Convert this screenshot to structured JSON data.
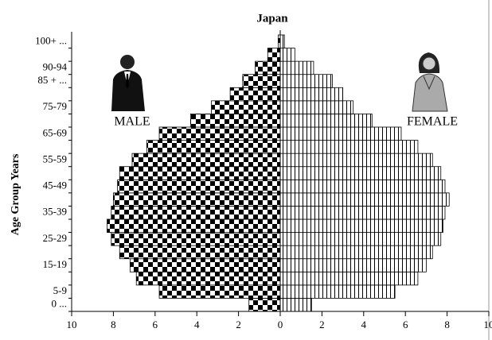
{
  "chart_data": {
    "type": "pyramid",
    "title": "Japan",
    "y_axis_label": "Age Group Years",
    "left_label": "MALE",
    "right_label": "FEMALE",
    "categories": [
      "0 ...",
      "5-9",
      null,
      "15-19",
      null,
      "25-29",
      null,
      "35-39",
      null,
      "45-49",
      null,
      "55-59",
      null,
      "65-69",
      null,
      "75-79",
      null,
      "85 + ...",
      "90-94",
      null,
      "100+ ..."
    ],
    "series": [
      {
        "name": "MALE",
        "color": "#000000",
        "side": "left",
        "values": [
          1.5,
          5.8,
          6.9,
          7.2,
          7.7,
          8.1,
          8.3,
          8.1,
          8.0,
          7.8,
          7.7,
          7.1,
          6.4,
          5.8,
          4.3,
          3.3,
          2.4,
          1.8,
          1.2,
          0.6,
          0.1
        ]
      },
      {
        "name": "FEMALE",
        "color": "#000000",
        "side": "right",
        "values": [
          1.5,
          5.5,
          6.6,
          7.0,
          7.3,
          7.7,
          7.8,
          7.9,
          8.1,
          7.9,
          7.7,
          7.3,
          6.6,
          5.8,
          4.4,
          3.5,
          3.0,
          2.5,
          1.6,
          0.7,
          0.2
        ]
      }
    ],
    "xlim": [
      -10,
      10
    ],
    "xticks": [
      {
        "value": -10,
        "label": "10"
      },
      {
        "value": -8,
        "label": "8"
      },
      {
        "value": -6,
        "label": "6"
      },
      {
        "value": -4,
        "label": "4"
      },
      {
        "value": -2,
        "label": "2"
      },
      0,
      2,
      4,
      6,
      8,
      10
    ]
  }
}
